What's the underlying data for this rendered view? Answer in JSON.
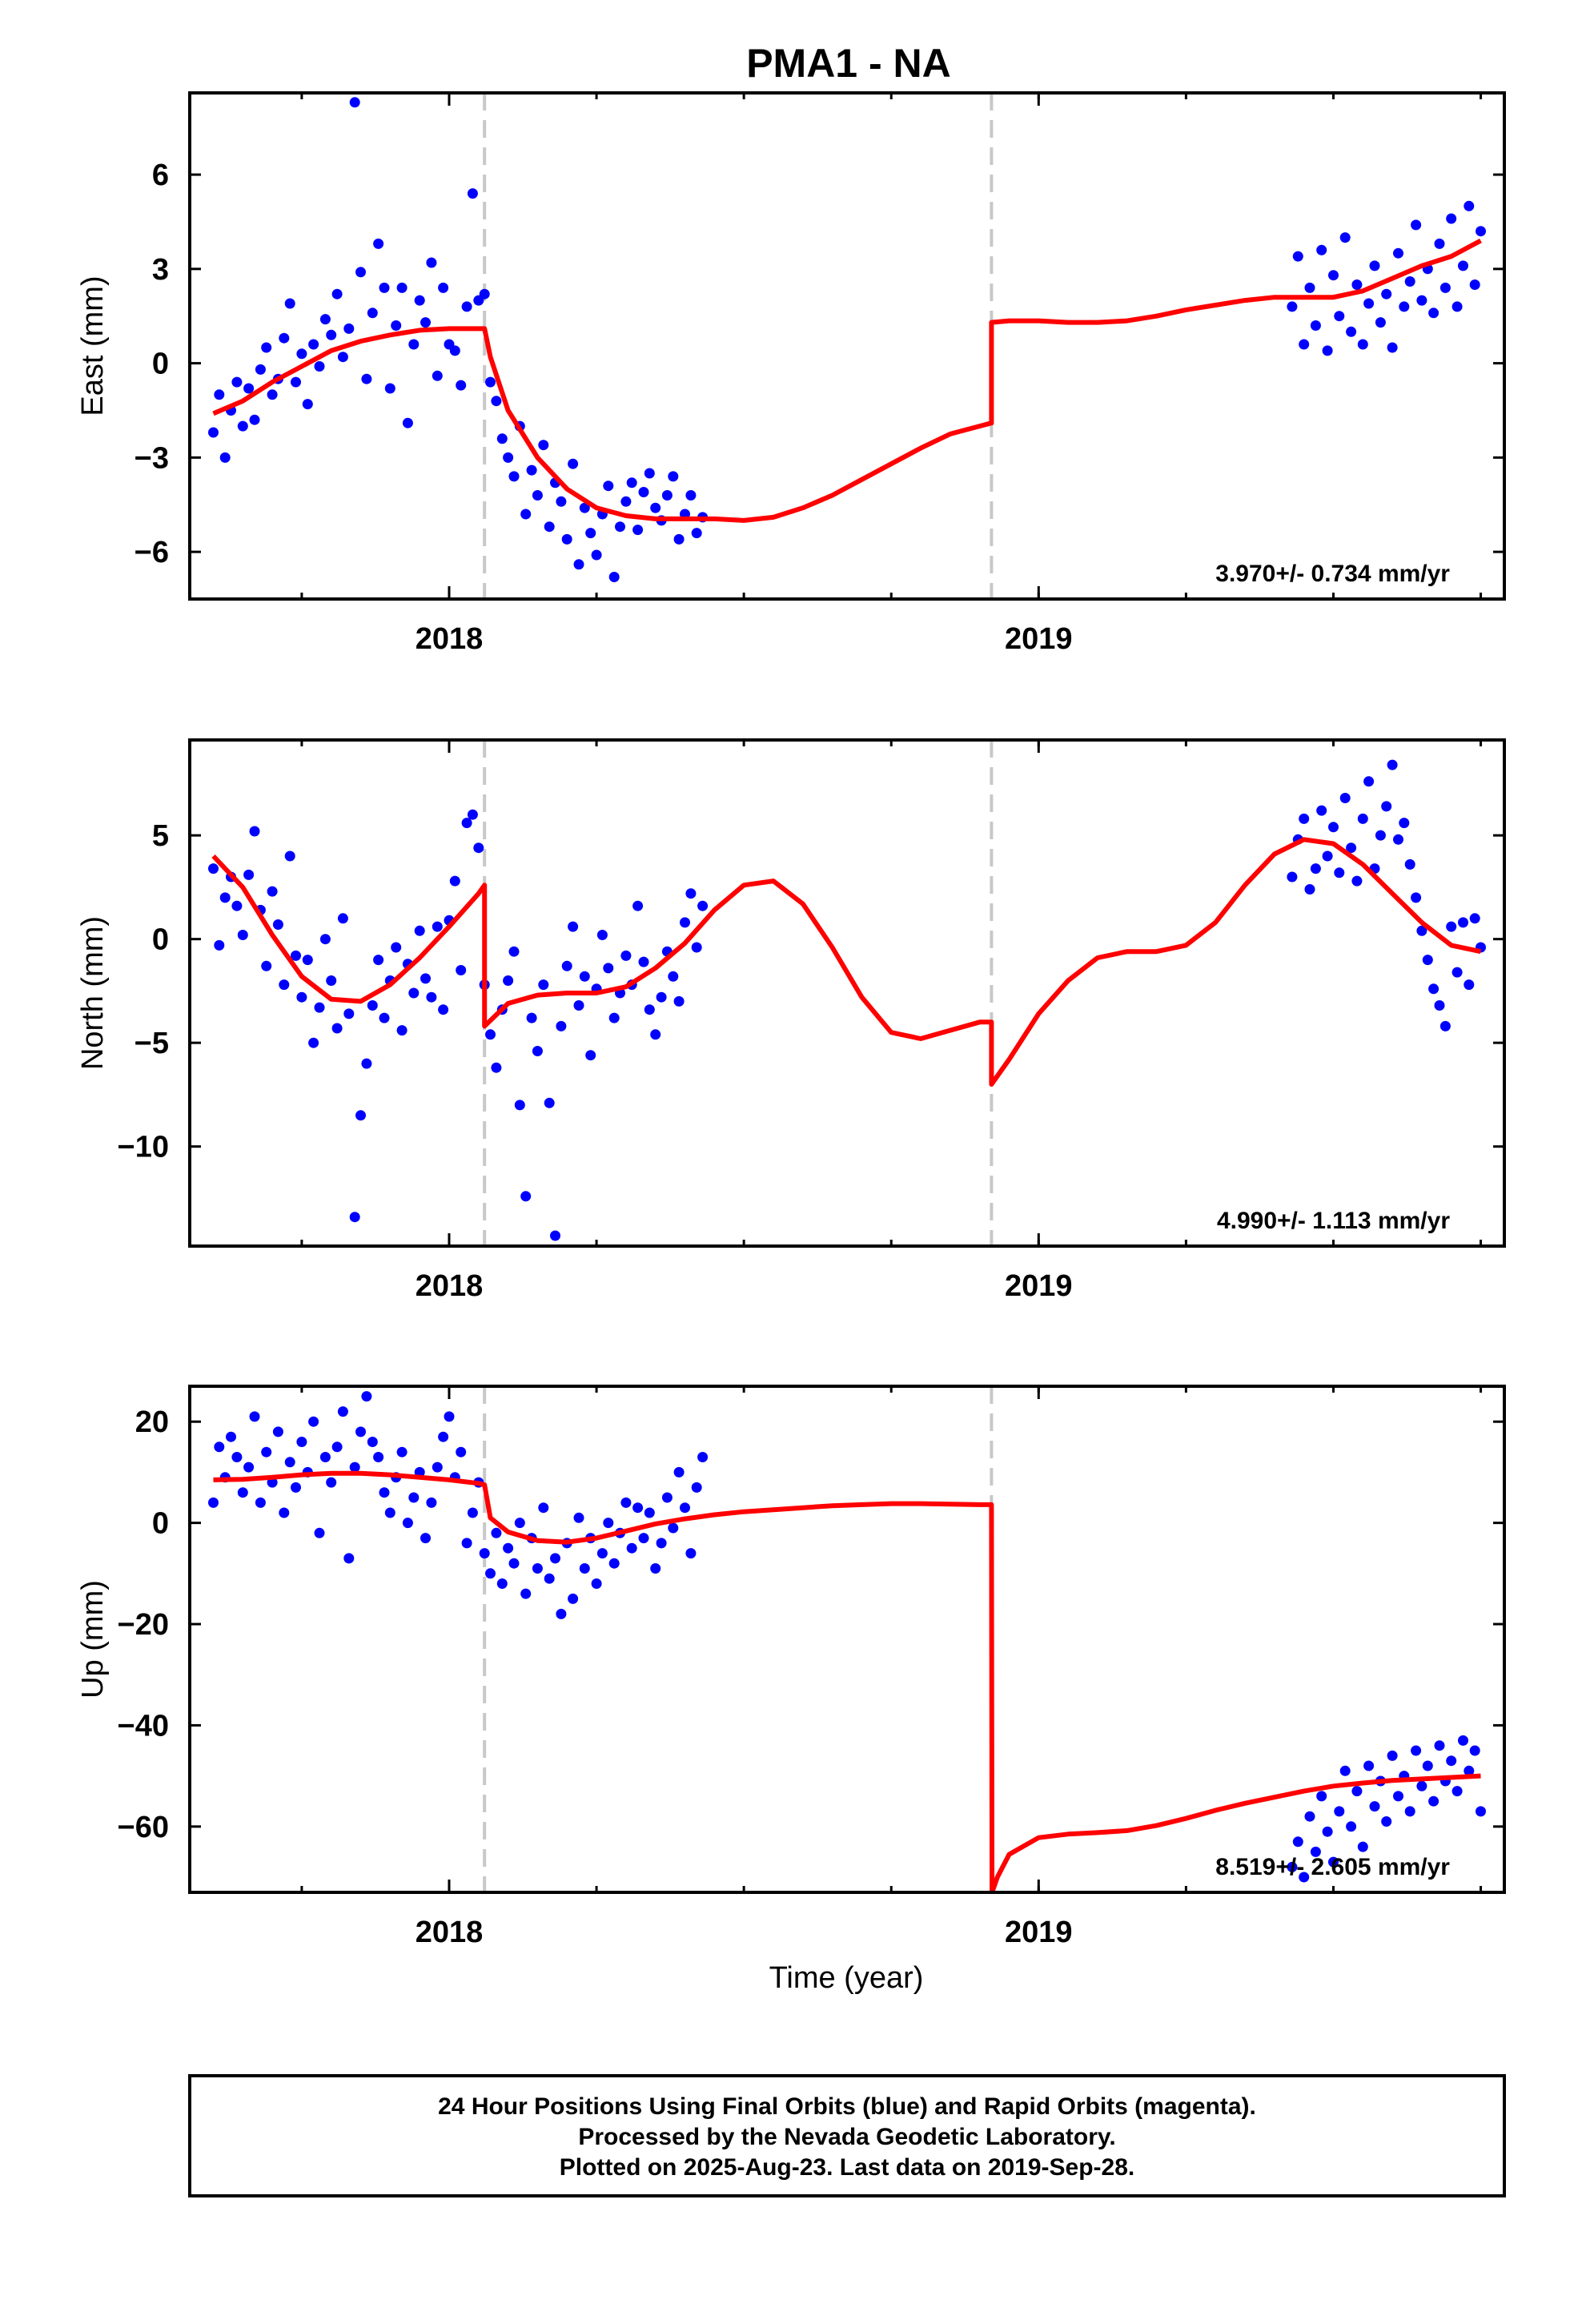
{
  "figure": {
    "title": "PMA1 - NA",
    "xlabel": "Time (year)",
    "footer": [
      "24 Hour Positions Using Final Orbits (blue) and Rapid Orbits (magenta).",
      "Processed by the Nevada Geodetic Laboratory.",
      "Plotted on 2025-Aug-23. Last data on 2019-Sep-28."
    ],
    "colors": {
      "data": "#0000ff",
      "model": "#ff0000",
      "event_line": "#c8c8c8",
      "frame": "#000000"
    }
  },
  "chart_data": [
    {
      "type": "scatter",
      "ylabel": "East (mm)",
      "rate_label": "3.970+/- 0.734 mm/yr",
      "xlim": [
        2017.56,
        2019.79
      ],
      "ylim": [
        -7.5,
        8.6
      ],
      "x_ticks": [
        2018,
        2019
      ],
      "y_ticks": [
        6,
        3,
        0,
        -3,
        -6
      ],
      "event_lines": [
        2018.06,
        2018.92
      ],
      "model": {
        "name": "model",
        "x": [
          2017.6,
          2017.65,
          2017.7,
          2017.75,
          2017.8,
          2017.85,
          2017.9,
          2017.95,
          2018.0,
          2018.05,
          2018.06,
          2018.07,
          2018.1,
          2018.15,
          2018.2,
          2018.25,
          2018.3,
          2018.35,
          2018.4,
          2018.45,
          2018.5,
          2018.55,
          2018.6,
          2018.65,
          2018.7,
          2018.75,
          2018.8,
          2018.85,
          2018.9,
          2018.92,
          2018.92,
          2018.95,
          2019.0,
          2019.05,
          2019.1,
          2019.15,
          2019.2,
          2019.25,
          2019.3,
          2019.35,
          2019.4,
          2019.45,
          2019.5,
          2019.55,
          2019.6,
          2019.65,
          2019.7,
          2019.75
        ],
        "y": [
          -1.6,
          -1.2,
          -0.6,
          -0.1,
          0.4,
          0.7,
          0.9,
          1.05,
          1.1,
          1.1,
          1.1,
          0.2,
          -1.5,
          -3.0,
          -4.0,
          -4.6,
          -4.85,
          -4.95,
          -4.95,
          -4.95,
          -5.0,
          -4.9,
          -4.6,
          -4.2,
          -3.7,
          -3.2,
          -2.7,
          -2.25,
          -2.0,
          -1.9,
          1.3,
          1.35,
          1.35,
          1.3,
          1.3,
          1.35,
          1.5,
          1.7,
          1.85,
          2.0,
          2.1,
          2.1,
          2.1,
          2.3,
          2.7,
          3.1,
          3.4,
          3.9
        ]
      },
      "observations": {
        "name": "24 hour positions",
        "x": [
          2017.6,
          2017.61,
          2017.62,
          2017.63,
          2017.64,
          2017.65,
          2017.66,
          2017.67,
          2017.68,
          2017.69,
          2017.7,
          2017.71,
          2017.72,
          2017.73,
          2017.74,
          2017.75,
          2017.76,
          2017.77,
          2017.78,
          2017.79,
          2017.8,
          2017.81,
          2017.82,
          2017.83,
          2017.84,
          2017.85,
          2017.86,
          2017.87,
          2017.88,
          2017.89,
          2017.9,
          2017.91,
          2017.92,
          2017.93,
          2017.94,
          2017.95,
          2017.96,
          2017.97,
          2017.98,
          2017.99,
          2018.0,
          2018.01,
          2018.02,
          2018.03,
          2018.04,
          2018.05,
          2018.06,
          2018.07,
          2018.08,
          2018.09,
          2018.1,
          2018.11,
          2018.12,
          2018.13,
          2018.14,
          2018.15,
          2018.16,
          2018.17,
          2018.18,
          2018.19,
          2018.2,
          2018.21,
          2018.22,
          2018.23,
          2018.24,
          2018.25,
          2018.26,
          2018.27,
          2018.28,
          2018.29,
          2018.3,
          2018.31,
          2018.32,
          2018.33,
          2018.34,
          2018.35,
          2018.36,
          2018.37,
          2018.38,
          2018.39,
          2018.4,
          2018.41,
          2018.42,
          2018.43,
          2019.43,
          2019.44,
          2019.45,
          2019.46,
          2019.47,
          2019.48,
          2019.49,
          2019.5,
          2019.51,
          2019.52,
          2019.53,
          2019.54,
          2019.55,
          2019.56,
          2019.57,
          2019.58,
          2019.59,
          2019.6,
          2019.61,
          2019.62,
          2019.63,
          2019.64,
          2019.65,
          2019.66,
          2019.67,
          2019.68,
          2019.69,
          2019.7,
          2019.71,
          2019.72,
          2019.73,
          2019.74,
          2019.75
        ],
        "y": [
          -2.2,
          -1.0,
          -3.0,
          -1.5,
          -0.6,
          -2.0,
          -0.8,
          -1.8,
          -0.2,
          0.5,
          -1.0,
          -0.5,
          0.8,
          1.9,
          -0.6,
          0.3,
          -1.3,
          0.6,
          -0.1,
          1.4,
          0.9,
          2.2,
          0.2,
          1.1,
          8.3,
          2.9,
          -0.5,
          1.6,
          3.8,
          2.4,
          -0.8,
          1.2,
          2.4,
          -1.9,
          0.6,
          2.0,
          1.3,
          3.2,
          -0.4,
          2.4,
          0.6,
          0.4,
          -0.7,
          1.8,
          5.4,
          2.0,
          2.2,
          -0.6,
          -1.2,
          -2.4,
          -3.0,
          -3.6,
          -2.0,
          -4.8,
          -3.4,
          -4.2,
          -2.6,
          -5.2,
          -3.8,
          -4.4,
          -5.6,
          -3.2,
          -6.4,
          -4.6,
          -5.4,
          -6.1,
          -4.8,
          -3.9,
          -6.8,
          -5.2,
          -4.4,
          -3.8,
          -5.3,
          -4.1,
          -3.5,
          -4.6,
          -5.0,
          -4.2,
          -3.6,
          -5.6,
          -4.8,
          -4.2,
          -5.4,
          -4.9,
          1.8,
          3.4,
          0.6,
          2.4,
          1.2,
          3.6,
          0.4,
          2.8,
          1.5,
          4.0,
          1.0,
          2.5,
          0.6,
          1.9,
          3.1,
          1.3,
          2.2,
          0.5,
          3.5,
          1.8,
          2.6,
          4.4,
          2.0,
          3.0,
          1.6,
          3.8,
          2.4,
          4.6,
          1.8,
          3.1,
          5.0,
          2.5,
          4.2
        ]
      }
    },
    {
      "type": "scatter",
      "ylabel": "North (mm)",
      "rate_label": "4.990+/- 1.113 mm/yr",
      "xlim": [
        2017.56,
        2019.79
      ],
      "ylim": [
        -14.8,
        9.6
      ],
      "x_ticks": [
        2018,
        2019
      ],
      "y_ticks": [
        5,
        0,
        -5,
        -10
      ],
      "event_lines": [
        2018.06,
        2018.92
      ],
      "model": {
        "name": "model",
        "x": [
          2017.6,
          2017.65,
          2017.7,
          2017.75,
          2017.8,
          2017.85,
          2017.9,
          2017.95,
          2018.0,
          2018.05,
          2018.06,
          2018.06,
          2018.1,
          2018.15,
          2018.2,
          2018.25,
          2018.3,
          2018.35,
          2018.4,
          2018.45,
          2018.5,
          2018.55,
          2018.6,
          2018.65,
          2018.7,
          2018.75,
          2018.8,
          2018.85,
          2018.9,
          2018.92,
          2018.92,
          2018.95,
          2019.0,
          2019.05,
          2019.1,
          2019.15,
          2019.2,
          2019.25,
          2019.3,
          2019.35,
          2019.4,
          2019.45,
          2019.5,
          2019.55,
          2019.6,
          2019.65,
          2019.7,
          2019.75
        ],
        "y": [
          4.0,
          2.5,
          0.2,
          -1.8,
          -2.9,
          -3.0,
          -2.2,
          -0.9,
          0.6,
          2.2,
          2.6,
          -4.2,
          -3.1,
          -2.7,
          -2.6,
          -2.6,
          -2.3,
          -1.4,
          -0.2,
          1.4,
          2.6,
          2.8,
          1.7,
          -0.4,
          -2.8,
          -4.5,
          -4.8,
          -4.4,
          -4.0,
          -4.0,
          -7.0,
          -5.8,
          -3.6,
          -2.0,
          -0.9,
          -0.6,
          -0.6,
          -0.3,
          0.8,
          2.6,
          4.1,
          4.8,
          4.6,
          3.6,
          2.2,
          0.8,
          -0.3,
          -0.6
        ]
      },
      "observations": {
        "name": "24 hour positions",
        "x": [
          2017.6,
          2017.61,
          2017.62,
          2017.63,
          2017.64,
          2017.65,
          2017.66,
          2017.67,
          2017.68,
          2017.69,
          2017.7,
          2017.71,
          2017.72,
          2017.73,
          2017.74,
          2017.75,
          2017.76,
          2017.77,
          2017.78,
          2017.79,
          2017.8,
          2017.81,
          2017.82,
          2017.83,
          2017.84,
          2017.85,
          2017.86,
          2017.87,
          2017.88,
          2017.89,
          2017.9,
          2017.91,
          2017.92,
          2017.93,
          2017.94,
          2017.95,
          2017.96,
          2017.97,
          2017.98,
          2017.99,
          2018.0,
          2018.01,
          2018.02,
          2018.03,
          2018.04,
          2018.05,
          2018.06,
          2018.07,
          2018.08,
          2018.09,
          2018.1,
          2018.11,
          2018.12,
          2018.13,
          2018.14,
          2018.15,
          2018.16,
          2018.17,
          2018.18,
          2018.19,
          2018.2,
          2018.21,
          2018.22,
          2018.23,
          2018.24,
          2018.25,
          2018.26,
          2018.27,
          2018.28,
          2018.29,
          2018.3,
          2018.31,
          2018.32,
          2018.33,
          2018.34,
          2018.35,
          2018.36,
          2018.37,
          2018.38,
          2018.39,
          2018.4,
          2018.41,
          2018.42,
          2018.43,
          2019.43,
          2019.44,
          2019.45,
          2019.46,
          2019.47,
          2019.48,
          2019.49,
          2019.5,
          2019.51,
          2019.52,
          2019.53,
          2019.54,
          2019.55,
          2019.56,
          2019.57,
          2019.58,
          2019.59,
          2019.6,
          2019.61,
          2019.62,
          2019.63,
          2019.64,
          2019.65,
          2019.66,
          2019.67,
          2019.68,
          2019.69,
          2019.7,
          2019.71,
          2019.72,
          2019.73,
          2019.74,
          2019.75
        ],
        "y": [
          3.4,
          -0.3,
          2.0,
          3.0,
          1.6,
          0.2,
          3.1,
          5.2,
          1.4,
          -1.3,
          2.3,
          0.7,
          -2.2,
          4.0,
          -0.8,
          -2.8,
          -1.0,
          -5.0,
          -3.3,
          0.0,
          -2.0,
          -4.3,
          1.0,
          -3.6,
          -13.4,
          -8.5,
          -6.0,
          -3.2,
          -1.0,
          -3.8,
          -2.0,
          -0.4,
          -4.4,
          -1.2,
          -2.6,
          0.4,
          -1.9,
          -2.8,
          0.6,
          -3.4,
          0.9,
          2.8,
          -1.5,
          5.6,
          6.0,
          4.4,
          -2.2,
          -4.6,
          -6.2,
          -3.4,
          -2.0,
          -0.6,
          -8.0,
          -12.4,
          -3.8,
          -5.4,
          -2.2,
          -7.9,
          -14.3,
          -4.2,
          -1.3,
          0.6,
          -3.2,
          -1.8,
          -5.6,
          -2.4,
          0.2,
          -1.4,
          -3.8,
          -2.6,
          -0.8,
          -2.2,
          1.6,
          -1.1,
          -3.4,
          -4.6,
          -2.8,
          -0.6,
          -1.8,
          -3.0,
          0.8,
          2.2,
          -0.4,
          1.6,
          3.0,
          4.8,
          5.8,
          2.4,
          3.4,
          6.2,
          4.0,
          5.4,
          3.2,
          6.8,
          4.4,
          2.8,
          5.8,
          7.6,
          3.4,
          5.0,
          6.4,
          8.4,
          4.8,
          5.6,
          3.6,
          2.0,
          0.4,
          -1.0,
          -2.4,
          -3.2,
          -4.2,
          0.6,
          -1.6,
          0.8,
          -2.2,
          1.0,
          -0.4
        ]
      }
    },
    {
      "type": "scatter",
      "ylabel": "Up (mm)",
      "rate_label": "8.519+/- 2.605 mm/yr",
      "xlim": [
        2017.56,
        2019.79
      ],
      "ylim": [
        -73,
        27
      ],
      "x_ticks": [
        2018,
        2019
      ],
      "y_ticks": [
        20,
        0,
        -20,
        -40,
        -60
      ],
      "event_lines": [
        2018.06,
        2018.92
      ],
      "model": {
        "name": "model",
        "x": [
          2017.6,
          2017.65,
          2017.7,
          2017.75,
          2017.8,
          2017.85,
          2017.9,
          2017.95,
          2018.0,
          2018.05,
          2018.06,
          2018.07,
          2018.1,
          2018.15,
          2018.2,
          2018.25,
          2018.3,
          2018.35,
          2018.4,
          2018.45,
          2018.5,
          2018.55,
          2018.6,
          2018.65,
          2018.7,
          2018.75,
          2018.8,
          2018.85,
          2018.9,
          2018.92,
          2018.921,
          2018.93,
          2018.95,
          2019.0,
          2019.05,
          2019.1,
          2019.15,
          2019.2,
          2019.25,
          2019.3,
          2019.35,
          2019.4,
          2019.45,
          2019.5,
          2019.55,
          2019.6,
          2019.65,
          2019.7,
          2019.75
        ],
        "y": [
          8.5,
          8.6,
          9.0,
          9.5,
          9.8,
          9.8,
          9.5,
          9.0,
          8.5,
          7.8,
          7.5,
          1.0,
          -1.8,
          -3.5,
          -3.8,
          -3.0,
          -1.6,
          -0.2,
          0.8,
          1.6,
          2.2,
          2.6,
          3.0,
          3.4,
          3.6,
          3.8,
          3.8,
          3.7,
          3.6,
          3.6,
          -73,
          -70,
          -65.5,
          -62.2,
          -61.5,
          -61.2,
          -60.8,
          -59.8,
          -58.4,
          -56.8,
          -55.4,
          -54.2,
          -53.0,
          -52.0,
          -51.4,
          -50.9,
          -50.6,
          -50.3,
          -50.0
        ]
      },
      "observations": {
        "name": "24 hour positions",
        "x": [
          2017.6,
          2017.61,
          2017.62,
          2017.63,
          2017.64,
          2017.65,
          2017.66,
          2017.67,
          2017.68,
          2017.69,
          2017.7,
          2017.71,
          2017.72,
          2017.73,
          2017.74,
          2017.75,
          2017.76,
          2017.77,
          2017.78,
          2017.79,
          2017.8,
          2017.81,
          2017.82,
          2017.83,
          2017.84,
          2017.85,
          2017.86,
          2017.87,
          2017.88,
          2017.89,
          2017.9,
          2017.91,
          2017.92,
          2017.93,
          2017.94,
          2017.95,
          2017.96,
          2017.97,
          2017.98,
          2017.99,
          2018.0,
          2018.01,
          2018.02,
          2018.03,
          2018.04,
          2018.05,
          2018.06,
          2018.07,
          2018.08,
          2018.09,
          2018.1,
          2018.11,
          2018.12,
          2018.13,
          2018.14,
          2018.15,
          2018.16,
          2018.17,
          2018.18,
          2018.19,
          2018.2,
          2018.21,
          2018.22,
          2018.23,
          2018.24,
          2018.25,
          2018.26,
          2018.27,
          2018.28,
          2018.29,
          2018.3,
          2018.31,
          2018.32,
          2018.33,
          2018.34,
          2018.35,
          2018.36,
          2018.37,
          2018.38,
          2018.39,
          2018.4,
          2018.41,
          2018.42,
          2018.43,
          2019.43,
          2019.44,
          2019.45,
          2019.46,
          2019.47,
          2019.48,
          2019.49,
          2019.5,
          2019.51,
          2019.52,
          2019.53,
          2019.54,
          2019.55,
          2019.56,
          2019.57,
          2019.58,
          2019.59,
          2019.6,
          2019.61,
          2019.62,
          2019.63,
          2019.64,
          2019.65,
          2019.66,
          2019.67,
          2019.68,
          2019.69,
          2019.7,
          2019.71,
          2019.72,
          2019.73,
          2019.74,
          2019.75
        ],
        "y": [
          4.0,
          15.0,
          9.0,
          17.0,
          13.0,
          6.0,
          11.0,
          21.0,
          4.0,
          14.0,
          8.0,
          18.0,
          2.0,
          12.0,
          7.0,
          16.0,
          10.0,
          20.0,
          -2.0,
          13.0,
          8.0,
          15.0,
          22.0,
          -7.0,
          11.0,
          18.0,
          25.0,
          16.0,
          13.0,
          6.0,
          2.0,
          9.0,
          14.0,
          0.0,
          5.0,
          10.0,
          -3.0,
          4.0,
          11.0,
          17.0,
          21.0,
          9.0,
          14.0,
          -4.0,
          2.0,
          8.0,
          -6.0,
          -10.0,
          -2.0,
          -12.0,
          -5.0,
          -8.0,
          0.0,
          -14.0,
          -3.0,
          -9.0,
          3.0,
          -11.0,
          -7.0,
          -18.0,
          -4.0,
          -15.0,
          1.0,
          -9.0,
          -3.0,
          -12.0,
          -6.0,
          0.0,
          -8.0,
          -2.0,
          4.0,
          -5.0,
          3.0,
          -3.0,
          2.0,
          -9.0,
          -4.0,
          5.0,
          -1.0,
          10.0,
          3.0,
          -6.0,
          7.0,
          13.0,
          -68.0,
          -63.0,
          -70.0,
          -58.0,
          -65.0,
          -54.0,
          -61.0,
          -67.0,
          -57.0,
          -49.0,
          -60.0,
          -53.0,
          -64.0,
          -48.0,
          -56.0,
          -51.0,
          -59.0,
          -46.0,
          -54.0,
          -50.0,
          -57.0,
          -45.0,
          -52.0,
          -48.0,
          -55.0,
          -44.0,
          -51.0,
          -47.0,
          -53.0,
          -43.0,
          -49.0,
          -45.0,
          -57.0
        ]
      }
    }
  ]
}
